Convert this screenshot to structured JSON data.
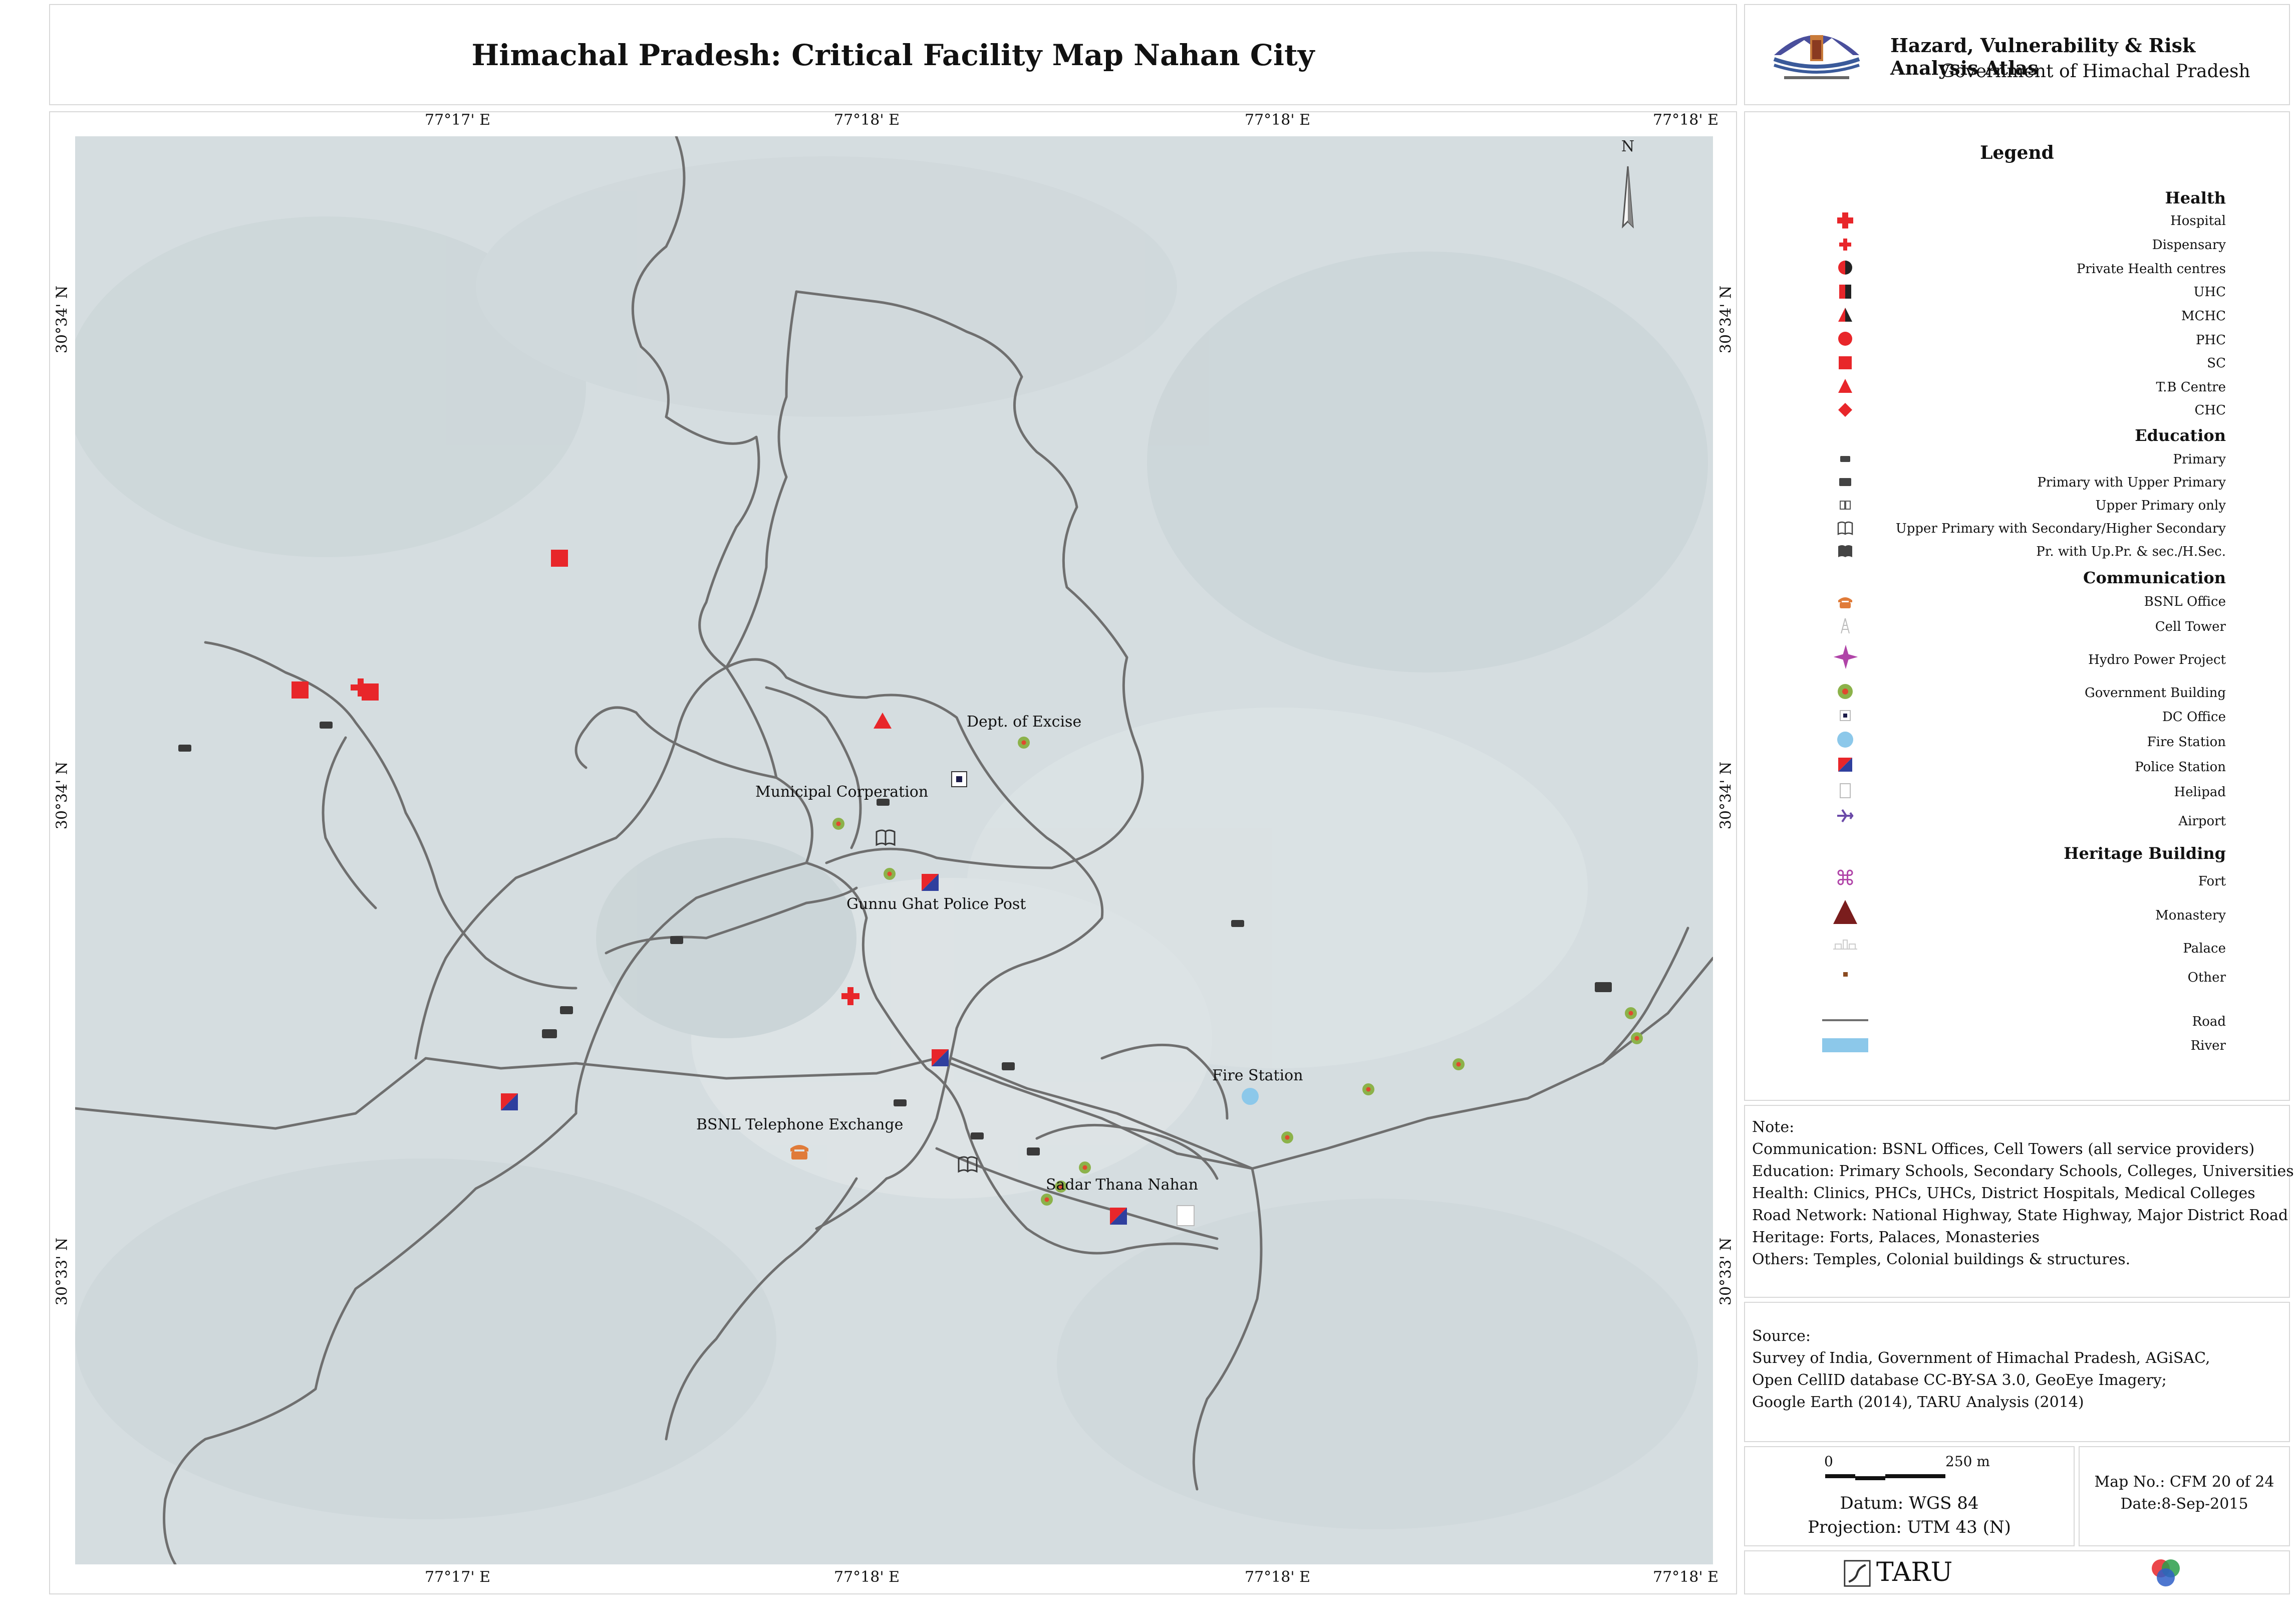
{
  "title": "Himachal Pradesh: Critical Facility Map Nahan City",
  "header": {
    "atlas_title": "Hazard, Vulnerability & Risk Analysis Atlas",
    "atlas_subtitle": "Government of Himachal Pradesh",
    "emblem": "himachal-pradesh-emblem"
  },
  "map": {
    "top_ticks": [
      "77°17' E",
      "77°18' E",
      "77°18' E",
      "77°18' E"
    ],
    "bottom_ticks": [
      "77°17' E",
      "77°18' E",
      "77°18' E",
      "77°18' E"
    ],
    "left_ticks": [
      "30°34' N",
      "30°34' N",
      "30°33' N"
    ],
    "right_ticks": [
      "30°34' N",
      "30°34' N",
      "30°33' N"
    ],
    "north_label": "N",
    "places": [
      "Dept. of Excise",
      "Municipal Corperation",
      "Gunnu Ghat Police Post",
      "Fire Station",
      "BSNL Telephone Exchange",
      "Sadar Thana Nahan"
    ],
    "colors": {
      "background": "#d5dde0",
      "road": "#6f6f6f",
      "health_red": "#e8262a",
      "police_blue": "#2f3f9e",
      "gov_green": "#8cb24a",
      "fire_blue": "#8cc8ea"
    }
  },
  "legend": {
    "title": "Legend",
    "sections": [
      {
        "heading": "Health",
        "items": [
          {
            "label": "Hospital",
            "icon": "hospital-cross-icon"
          },
          {
            "label": "Dispensary",
            "icon": "dispensary-cross-icon"
          },
          {
            "label": "Private Health centres",
            "icon": "private-health-icon"
          },
          {
            "label": "UHC",
            "icon": "uhc-icon"
          },
          {
            "label": "MCHC",
            "icon": "mchc-icon"
          },
          {
            "label": "PHC",
            "icon": "phc-icon"
          },
          {
            "label": "SC",
            "icon": "sc-icon"
          },
          {
            "label": "T.B Centre",
            "icon": "tb-centre-icon"
          },
          {
            "label": "CHC",
            "icon": "chc-icon"
          }
        ]
      },
      {
        "heading": "Education",
        "items": [
          {
            "label": "Primary",
            "icon": "school-primary-icon"
          },
          {
            "label": "Primary with Upper Primary",
            "icon": "school-upper-primary-icon"
          },
          {
            "label": "Upper Primary only",
            "icon": "book-small-icon"
          },
          {
            "label": "Upper Primary with Secondary/Higher Secondary",
            "icon": "book-open-icon"
          },
          {
            "label": "Pr. with Up.Pr. & sec./H.Sec.",
            "icon": "book-dark-icon"
          }
        ]
      },
      {
        "heading": "Communication",
        "items": [
          {
            "label": "BSNL Office",
            "icon": "telephone-icon"
          },
          {
            "label": "Cell Tower",
            "icon": "cell-tower-icon"
          },
          {
            "label": "Hydro Power Project",
            "icon": "hydro-star-icon"
          },
          {
            "label": "Government Building",
            "icon": "gov-building-icon"
          },
          {
            "label": "DC Office",
            "icon": "dc-office-icon"
          },
          {
            "label": "Fire Station",
            "icon": "fire-station-icon"
          },
          {
            "label": "Police Station",
            "icon": "police-station-icon"
          },
          {
            "label": "Helipad",
            "icon": "helipad-icon"
          },
          {
            "label": "Airport",
            "icon": "airport-icon"
          }
        ]
      },
      {
        "heading": "Heritage Building",
        "items": [
          {
            "label": "Fort",
            "icon": "fort-icon"
          },
          {
            "label": "Monastery",
            "icon": "monastery-icon"
          },
          {
            "label": "Palace",
            "icon": "palace-icon"
          },
          {
            "label": "Other",
            "icon": "other-heritage-icon"
          }
        ]
      }
    ],
    "extra": [
      {
        "label": "Road",
        "icon": "road-line-icon"
      },
      {
        "label": "River",
        "icon": "river-swatch-icon"
      }
    ]
  },
  "note": {
    "heading": "Note:",
    "lines": [
      " Communication: BSNL Offices, Cell Towers (all service providers)",
      "Education:  Primary Schools, Secondary Schools, Colleges, Universities",
      "Health: Clinics, PHCs, UHCs, District Hospitals, Medical Colleges",
      "Road Network: National Highway, State Highway, Major District Road",
      " Heritage: Forts, Palaces, Monasteries",
      " Others: Temples, Colonial buildings & structures."
    ]
  },
  "source": {
    "heading": "Source:",
    "lines": [
      " Survey of India, Government of Himachal Pradesh, AGiSAC,",
      " Open CellID database CC-BY-SA 3.0, GeoEye Imagery;",
      " Google Earth (2014), TARU Analysis (2014)"
    ]
  },
  "scale": {
    "zero": "0",
    "distance": "250 m",
    "datum": "Datum: WGS 84",
    "projection": "Projection: UTM 43 (N)"
  },
  "mapinfo": {
    "map_no": "Map No.: CFM 20 of 24",
    "date": "Date:8-Sep-2015"
  },
  "footer": {
    "taru": "TARU",
    "partner_logo": "rgb-circles-logo"
  }
}
